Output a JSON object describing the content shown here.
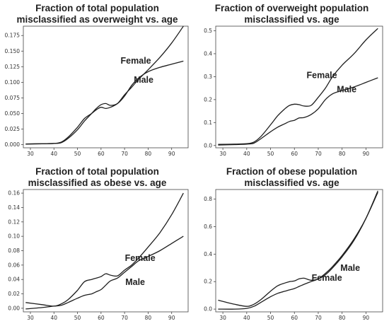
{
  "chart_data": [
    {
      "type": "line",
      "title": [
        "Fraction of total population",
        "misclassified as overweight vs. age"
      ],
      "xlabel": "",
      "ylabel": "",
      "xlim": [
        27,
        97
      ],
      "ylim": [
        -0.005,
        0.19
      ],
      "xticks": [
        "30",
        "40",
        "50",
        "60",
        "70",
        "80",
        "90"
      ],
      "yticks": [
        "0.000",
        "0.025",
        "0.050",
        "0.075",
        "0.100",
        "0.125",
        "0.150",
        "0.175"
      ],
      "grid": false,
      "series": [
        {
          "name": "Female",
          "x": [
            28,
            35,
            40,
            43,
            46,
            50,
            53,
            56,
            58,
            60,
            62,
            64,
            67,
            70,
            73,
            76,
            80,
            85,
            90,
            95
          ],
          "y": [
            0.001,
            0.0015,
            0.002,
            0.004,
            0.012,
            0.028,
            0.042,
            0.05,
            0.056,
            0.06,
            0.058,
            0.06,
            0.066,
            0.08,
            0.092,
            0.105,
            0.12,
            0.14,
            0.163,
            0.19
          ]
        },
        {
          "name": "Male",
          "x": [
            28,
            35,
            40,
            43,
            46,
            50,
            53,
            56,
            58,
            60,
            62,
            64,
            67,
            70,
            73,
            76,
            80,
            85,
            90,
            95
          ],
          "y": [
            0.001,
            0.0015,
            0.002,
            0.003,
            0.01,
            0.024,
            0.038,
            0.05,
            0.058,
            0.064,
            0.066,
            0.063,
            0.066,
            0.078,
            0.095,
            0.107,
            0.117,
            0.124,
            0.129,
            0.134
          ]
        }
      ]
    },
    {
      "type": "line",
      "title": [
        "Fraction of overweight population",
        "misclassified vs. age"
      ],
      "xlabel": "",
      "ylabel": "",
      "xlim": [
        27,
        97
      ],
      "ylim": [
        -0.01,
        0.52
      ],
      "xticks": [
        "30",
        "40",
        "50",
        "60",
        "70",
        "80",
        "90"
      ],
      "yticks": [
        "0.0",
        "0.1",
        "0.2",
        "0.3",
        "0.4",
        "0.5"
      ],
      "grid": false,
      "series": [
        {
          "name": "Female",
          "x": [
            28,
            35,
            40,
            43,
            46,
            50,
            53,
            56,
            58,
            60,
            62,
            64,
            67,
            70,
            73,
            76,
            80,
            85,
            90,
            95
          ],
          "y": [
            0.005,
            0.006,
            0.008,
            0.015,
            0.04,
            0.09,
            0.13,
            0.16,
            0.175,
            0.18,
            0.178,
            0.172,
            0.175,
            0.21,
            0.25,
            0.3,
            0.35,
            0.4,
            0.46,
            0.51
          ]
        },
        {
          "name": "Male",
          "x": [
            28,
            35,
            40,
            43,
            46,
            50,
            53,
            56,
            58,
            60,
            62,
            64,
            67,
            70,
            73,
            76,
            80,
            85,
            90,
            95
          ],
          "y": [
            0.002,
            0.004,
            0.006,
            0.01,
            0.03,
            0.06,
            0.08,
            0.095,
            0.105,
            0.11,
            0.12,
            0.122,
            0.135,
            0.16,
            0.2,
            0.225,
            0.24,
            0.255,
            0.275,
            0.295
          ]
        }
      ]
    },
    {
      "type": "line",
      "title": [
        "Fraction of total population",
        "misclassified as obese vs. age"
      ],
      "xlabel": "",
      "ylabel": "",
      "xlim": [
        27,
        97
      ],
      "ylim": [
        -0.005,
        0.165
      ],
      "xticks": [
        "30",
        "40",
        "50",
        "60",
        "70",
        "80",
        "90"
      ],
      "yticks": [
        "0.00",
        "0.02",
        "0.04",
        "0.06",
        "0.08",
        "0.10",
        "0.12",
        "0.14",
        "0.16"
      ],
      "grid": false,
      "series": [
        {
          "name": "Female",
          "x": [
            28,
            35,
            40,
            43,
            46,
            50,
            53,
            56,
            58,
            60,
            62,
            64,
            67,
            70,
            73,
            76,
            80,
            85,
            90,
            95
          ],
          "y": [
            0.008,
            0.005,
            0.003,
            0.006,
            0.012,
            0.025,
            0.037,
            0.04,
            0.042,
            0.044,
            0.048,
            0.046,
            0.045,
            0.053,
            0.06,
            0.07,
            0.085,
            0.105,
            0.13,
            0.16
          ]
        },
        {
          "name": "Male",
          "x": [
            28,
            35,
            40,
            43,
            46,
            50,
            53,
            56,
            58,
            60,
            62,
            64,
            67,
            70,
            73,
            76,
            80,
            85,
            90,
            95
          ],
          "y": [
            -0.001,
            0.001,
            0.003,
            0.004,
            0.008,
            0.014,
            0.018,
            0.02,
            0.023,
            0.026,
            0.032,
            0.038,
            0.042,
            0.05,
            0.058,
            0.066,
            0.072,
            0.08,
            0.09,
            0.1
          ]
        }
      ]
    },
    {
      "type": "line",
      "title": [
        "Fraction of obese population",
        "misclassified vs. age"
      ],
      "xlabel": "",
      "ylabel": "",
      "xlim": [
        27,
        97
      ],
      "ylim": [
        -0.02,
        0.87
      ],
      "xticks": [
        "30",
        "40",
        "50",
        "60",
        "70",
        "80",
        "90"
      ],
      "yticks": [
        "0.0",
        "0.2",
        "0.4",
        "0.6",
        "0.8"
      ],
      "grid": false,
      "series": [
        {
          "name": "Female",
          "x": [
            28,
            35,
            40,
            43,
            46,
            50,
            53,
            56,
            58,
            60,
            62,
            64,
            67,
            70,
            73,
            76,
            80,
            85,
            90,
            95
          ],
          "y": [
            0.065,
            0.035,
            0.02,
            0.035,
            0.07,
            0.13,
            0.17,
            0.19,
            0.2,
            0.205,
            0.22,
            0.225,
            0.21,
            0.22,
            0.25,
            0.3,
            0.38,
            0.5,
            0.66,
            0.86
          ]
        },
        {
          "name": "Male",
          "x": [
            28,
            35,
            40,
            43,
            46,
            50,
            53,
            56,
            58,
            60,
            62,
            64,
            67,
            70,
            73,
            76,
            80,
            85,
            90,
            95
          ],
          "y": [
            0,
            0,
            0.005,
            0.02,
            0.05,
            0.09,
            0.115,
            0.13,
            0.14,
            0.15,
            0.165,
            0.18,
            0.2,
            0.22,
            0.26,
            0.31,
            0.39,
            0.51,
            0.66,
            0.85
          ]
        }
      ]
    }
  ]
}
